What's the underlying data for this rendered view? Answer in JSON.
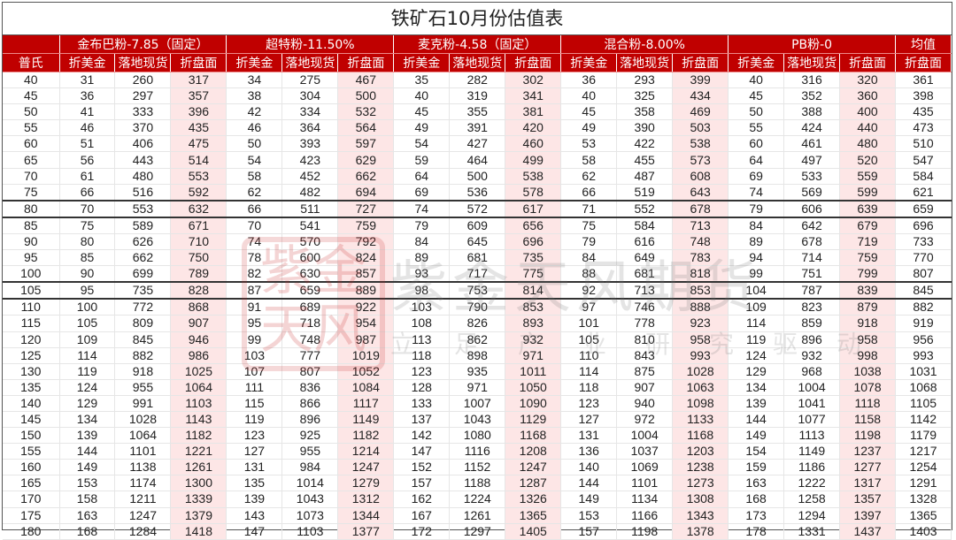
{
  "title": "铁矿石10月份估值表",
  "header": {
    "platts_label": "普氏",
    "sub_labels": [
      "折美金",
      "落地现货",
      "折盘面"
    ],
    "avg_label": "均值",
    "avg_sub_label": "折盘面"
  },
  "colors": {
    "header_bg": "#c00000",
    "futures_column_bg": "#fde6e6"
  },
  "highlight_rows": [
    80,
    105
  ],
  "watermark": {
    "seal": "紫金天风",
    "name": "紫金天风期货",
    "slogan": "立足产业研究驱动"
  },
  "platts": [
    40,
    45,
    50,
    55,
    60,
    65,
    70,
    75,
    80,
    85,
    90,
    95,
    100,
    105,
    110,
    115,
    120,
    125,
    130,
    135,
    140,
    145,
    150,
    155,
    160,
    165,
    170,
    175,
    180
  ],
  "groups": [
    {
      "name": "金布巴粉-7.85（固定）",
      "fold_usd": [
        31,
        36,
        41,
        46,
        51,
        56,
        61,
        66,
        70,
        75,
        80,
        85,
        90,
        95,
        100,
        105,
        109,
        114,
        119,
        124,
        129,
        134,
        139,
        144,
        149,
        153,
        158,
        163,
        168
      ],
      "landed_spot": [
        260,
        297,
        333,
        370,
        406,
        443,
        480,
        516,
        553,
        589,
        626,
        662,
        699,
        735,
        772,
        809,
        845,
        882,
        918,
        955,
        991,
        1028,
        1064,
        1101,
        1138,
        1174,
        1211,
        1247,
        1284
      ],
      "fold_futures": [
        317,
        357,
        396,
        435,
        475,
        514,
        553,
        592,
        632,
        671,
        710,
        750,
        789,
        828,
        868,
        907,
        946,
        986,
        1025,
        1064,
        1103,
        1143,
        1182,
        1221,
        1261,
        1300,
        1339,
        1379,
        1418
      ]
    },
    {
      "name": "超特粉-11.50%",
      "fold_usd": [
        34,
        38,
        42,
        46,
        50,
        54,
        58,
        62,
        66,
        70,
        74,
        78,
        82,
        87,
        91,
        95,
        99,
        103,
        107,
        111,
        115,
        119,
        123,
        127,
        131,
        135,
        139,
        143,
        147
      ],
      "landed_spot": [
        275,
        304,
        334,
        364,
        393,
        423,
        452,
        482,
        511,
        541,
        570,
        600,
        630,
        659,
        689,
        718,
        748,
        777,
        807,
        836,
        866,
        896,
        925,
        955,
        984,
        1014,
        1043,
        1073,
        1103
      ],
      "fold_futures": [
        467,
        500,
        532,
        564,
        597,
        629,
        662,
        694,
        727,
        759,
        792,
        824,
        857,
        889,
        922,
        954,
        987,
        1019,
        1052,
        1084,
        1117,
        1149,
        1182,
        1214,
        1247,
        1279,
        1312,
        1344,
        1377
      ]
    },
    {
      "name": "麦克粉-4.58（固定）",
      "fold_usd": [
        35,
        40,
        45,
        49,
        54,
        59,
        64,
        69,
        74,
        79,
        84,
        89,
        93,
        98,
        103,
        108,
        113,
        118,
        123,
        128,
        133,
        137,
        142,
        147,
        152,
        157,
        162,
        167,
        172
      ],
      "landed_spot": [
        282,
        319,
        355,
        391,
        427,
        464,
        500,
        536,
        572,
        609,
        645,
        681,
        717,
        753,
        790,
        826,
        862,
        898,
        935,
        971,
        1007,
        1043,
        1080,
        1116,
        1152,
        1188,
        1224,
        1261,
        1297
      ],
      "fold_futures": [
        302,
        341,
        381,
        420,
        460,
        499,
        538,
        578,
        617,
        656,
        696,
        735,
        775,
        814,
        853,
        893,
        932,
        971,
        1011,
        1050,
        1090,
        1129,
        1168,
        1208,
        1247,
        1287,
        1326,
        1365,
        1405
      ]
    },
    {
      "name": "混合粉-8.00%",
      "fold_usd": [
        36,
        40,
        45,
        49,
        53,
        58,
        62,
        66,
        71,
        75,
        79,
        84,
        88,
        92,
        97,
        101,
        105,
        110,
        114,
        118,
        123,
        127,
        131,
        136,
        140,
        144,
        149,
        153,
        157
      ],
      "landed_spot": [
        293,
        325,
        358,
        390,
        422,
        455,
        487,
        519,
        552,
        584,
        616,
        649,
        681,
        713,
        746,
        778,
        810,
        843,
        875,
        907,
        940,
        972,
        1004,
        1037,
        1069,
        1101,
        1134,
        1166,
        1198
      ],
      "fold_futures": [
        399,
        434,
        469,
        503,
        538,
        573,
        608,
        643,
        678,
        713,
        748,
        783,
        818,
        853,
        888,
        923,
        958,
        993,
        1028,
        1063,
        1098,
        1133,
        1168,
        1203,
        1238,
        1273,
        1308,
        1343,
        1378
      ]
    },
    {
      "name": "PB粉-0",
      "fold_usd": [
        40,
        45,
        50,
        55,
        60,
        64,
        69,
        74,
        79,
        84,
        89,
        94,
        99,
        104,
        109,
        114,
        119,
        124,
        129,
        134,
        139,
        144,
        149,
        154,
        159,
        163,
        168,
        173,
        178
      ],
      "landed_spot": [
        316,
        352,
        388,
        424,
        461,
        497,
        533,
        569,
        606,
        642,
        678,
        714,
        751,
        787,
        823,
        859,
        896,
        932,
        968,
        1004,
        1041,
        1077,
        1113,
        1149,
        1186,
        1222,
        1258,
        1294,
        1331
      ],
      "fold_futures": [
        320,
        360,
        400,
        440,
        480,
        520,
        559,
        599,
        639,
        679,
        719,
        759,
        799,
        839,
        879,
        918,
        958,
        998,
        1038,
        1078,
        1118,
        1158,
        1198,
        1237,
        1277,
        1317,
        1357,
        1397,
        1437
      ]
    }
  ],
  "average_fold_futures": [
    361,
    398,
    435,
    473,
    510,
    547,
    584,
    621,
    659,
    696,
    733,
    770,
    807,
    845,
    882,
    919,
    956,
    993,
    1031,
    1068,
    1105,
    1142,
    1179,
    1217,
    1254,
    1291,
    1328,
    1365,
    1403
  ]
}
